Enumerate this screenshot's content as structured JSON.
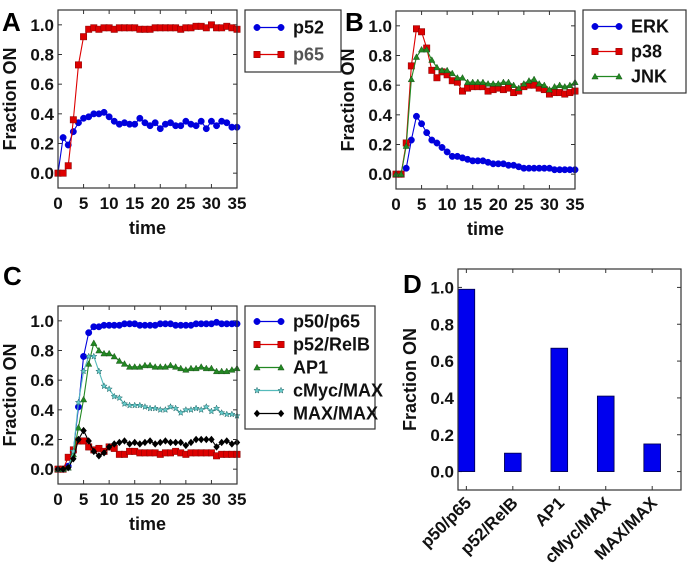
{
  "chart_data": [
    {
      "panel": "A",
      "type": "line",
      "title": "",
      "xlabel": "time",
      "ylabel": "Fraction ON",
      "xlim": [
        0,
        35
      ],
      "ylim": [
        -0.1,
        1.1
      ],
      "xticks": [
        "0",
        "5",
        "10",
        "15",
        "20",
        "25",
        "30",
        "35"
      ],
      "yticks": [
        "0.0",
        "0.2",
        "0.4",
        "0.6",
        "0.8",
        "1.0"
      ],
      "legend_position": "outside-right",
      "x": [
        0,
        1,
        2,
        3,
        4,
        5,
        6,
        7,
        8,
        9,
        10,
        11,
        12,
        13,
        14,
        15,
        16,
        17,
        18,
        19,
        20,
        21,
        22,
        23,
        24,
        25,
        26,
        27,
        28,
        29,
        30,
        31,
        32,
        33,
        34,
        35
      ],
      "series": [
        {
          "name": "p52",
          "color": "#0000dd",
          "marker": "circle",
          "label_color": "#111111",
          "values": [
            0.0,
            0.24,
            0.19,
            0.28,
            0.34,
            0.37,
            0.38,
            0.4,
            0.4,
            0.41,
            0.38,
            0.35,
            0.33,
            0.34,
            0.33,
            0.33,
            0.37,
            0.34,
            0.32,
            0.34,
            0.3,
            0.33,
            0.34,
            0.32,
            0.32,
            0.35,
            0.33,
            0.32,
            0.35,
            0.3,
            0.35,
            0.32,
            0.35,
            0.34,
            0.31,
            0.31
          ]
        },
        {
          "name": "p65",
          "color": "#dd0000",
          "marker": "square",
          "label_color": "#555555",
          "values": [
            0.0,
            0.0,
            0.05,
            0.36,
            0.73,
            0.92,
            0.97,
            0.98,
            0.97,
            0.98,
            0.98,
            0.97,
            0.98,
            0.98,
            0.98,
            0.98,
            0.97,
            0.97,
            0.97,
            0.98,
            0.98,
            0.98,
            0.98,
            0.98,
            0.97,
            0.98,
            0.98,
            0.99,
            0.99,
            0.98,
            1.0,
            0.98,
            0.98,
            0.99,
            0.98,
            0.97
          ]
        }
      ]
    },
    {
      "panel": "B",
      "type": "line",
      "title": "",
      "xlabel": "time",
      "ylabel": "Fraction ON",
      "xlim": [
        0,
        35
      ],
      "ylim": [
        -0.1,
        1.1
      ],
      "xticks": [
        "0",
        "5",
        "10",
        "15",
        "20",
        "25",
        "30",
        "35"
      ],
      "yticks": [
        "0.0",
        "0.2",
        "0.4",
        "0.6",
        "0.8",
        "1.0"
      ],
      "legend_position": "outside-right",
      "x": [
        0,
        1,
        2,
        3,
        4,
        5,
        6,
        7,
        8,
        9,
        10,
        11,
        12,
        13,
        14,
        15,
        16,
        17,
        18,
        19,
        20,
        21,
        22,
        23,
        24,
        25,
        26,
        27,
        28,
        29,
        30,
        31,
        32,
        33,
        34,
        35
      ],
      "series": [
        {
          "name": "ERK",
          "color": "#0000dd",
          "marker": "circle",
          "label_color": "#111111",
          "values": [
            0.0,
            0.0,
            0.04,
            0.23,
            0.39,
            0.34,
            0.28,
            0.23,
            0.21,
            0.18,
            0.15,
            0.12,
            0.12,
            0.11,
            0.1,
            0.09,
            0.09,
            0.09,
            0.08,
            0.07,
            0.07,
            0.07,
            0.06,
            0.06,
            0.05,
            0.04,
            0.04,
            0.04,
            0.04,
            0.04,
            0.04,
            0.03,
            0.03,
            0.03,
            0.03,
            0.03
          ]
        },
        {
          "name": "p38",
          "color": "#dd0000",
          "marker": "square",
          "label_color": "#111111",
          "values": [
            0.0,
            0.0,
            0.21,
            0.73,
            0.98,
            0.96,
            0.85,
            0.7,
            0.65,
            0.69,
            0.67,
            0.63,
            0.62,
            0.56,
            0.58,
            0.59,
            0.59,
            0.59,
            0.56,
            0.57,
            0.58,
            0.57,
            0.58,
            0.55,
            0.56,
            0.59,
            0.6,
            0.6,
            0.58,
            0.57,
            0.54,
            0.55,
            0.55,
            0.54,
            0.55,
            0.56
          ]
        },
        {
          "name": "JNK",
          "color": "#228822",
          "marker": "triangle",
          "label_color": "#111111",
          "values": [
            0.0,
            0.0,
            0.19,
            0.64,
            0.79,
            0.84,
            0.84,
            0.77,
            0.72,
            0.7,
            0.7,
            0.68,
            0.65,
            0.65,
            0.62,
            0.62,
            0.62,
            0.62,
            0.61,
            0.61,
            0.61,
            0.62,
            0.62,
            0.6,
            0.58,
            0.61,
            0.63,
            0.64,
            0.61,
            0.6,
            0.57,
            0.59,
            0.6,
            0.59,
            0.6,
            0.62
          ]
        }
      ]
    },
    {
      "panel": "C",
      "type": "line",
      "title": "",
      "xlabel": "time",
      "ylabel": "Fraction ON",
      "xlim": [
        0,
        35
      ],
      "ylim": [
        -0.1,
        1.1
      ],
      "xticks": [
        "0",
        "5",
        "10",
        "15",
        "20",
        "25",
        "30",
        "35"
      ],
      "yticks": [
        "0.0",
        "0.2",
        "0.4",
        "0.6",
        "0.8",
        "1.0"
      ],
      "legend_position": "outside-right",
      "x": [
        0,
        1,
        2,
        3,
        4,
        5,
        6,
        7,
        8,
        9,
        10,
        11,
        12,
        13,
        14,
        15,
        16,
        17,
        18,
        19,
        20,
        21,
        22,
        23,
        24,
        25,
        26,
        27,
        28,
        29,
        30,
        31,
        32,
        33,
        34,
        35
      ],
      "series": [
        {
          "name": "p50/p65",
          "color": "#0000dd",
          "marker": "circle",
          "label_color": "#111111",
          "values": [
            0.0,
            0.0,
            0.02,
            0.12,
            0.42,
            0.76,
            0.92,
            0.96,
            0.96,
            0.97,
            0.97,
            0.97,
            0.97,
            0.98,
            0.98,
            0.98,
            0.97,
            0.97,
            0.97,
            0.97,
            0.98,
            0.98,
            0.98,
            0.97,
            0.97,
            0.97,
            0.97,
            0.98,
            0.98,
            0.98,
            0.98,
            0.99,
            0.98,
            0.98,
            0.98,
            0.98
          ]
        },
        {
          "name": "p52/RelB",
          "color": "#dd0000",
          "marker": "square",
          "label_color": "#111111",
          "values": [
            0.0,
            0.0,
            0.08,
            0.13,
            0.19,
            0.19,
            0.15,
            0.13,
            0.14,
            0.12,
            0.15,
            0.14,
            0.1,
            0.1,
            0.12,
            0.12,
            0.11,
            0.11,
            0.11,
            0.11,
            0.1,
            0.11,
            0.11,
            0.12,
            0.11,
            0.1,
            0.11,
            0.11,
            0.11,
            0.11,
            0.11,
            0.09,
            0.1,
            0.1,
            0.1,
            0.1
          ]
        },
        {
          "name": "AP1",
          "color": "#228822",
          "marker": "triangle",
          "label_color": "#111111",
          "values": [
            0.0,
            0.0,
            0.01,
            0.1,
            0.28,
            0.47,
            0.71,
            0.85,
            0.8,
            0.78,
            0.78,
            0.76,
            0.73,
            0.71,
            0.69,
            0.69,
            0.69,
            0.7,
            0.7,
            0.69,
            0.69,
            0.69,
            0.7,
            0.69,
            0.68,
            0.67,
            0.68,
            0.68,
            0.69,
            0.68,
            0.68,
            0.66,
            0.66,
            0.66,
            0.67,
            0.68
          ]
        },
        {
          "name": "cMyc/MAX",
          "color": "#339999",
          "marker": "star",
          "label_color": "#111111",
          "values": [
            0.0,
            0.0,
            0.01,
            0.12,
            0.45,
            0.66,
            0.76,
            0.76,
            0.66,
            0.56,
            0.54,
            0.49,
            0.48,
            0.44,
            0.43,
            0.43,
            0.43,
            0.42,
            0.41,
            0.41,
            0.4,
            0.4,
            0.42,
            0.41,
            0.38,
            0.4,
            0.4,
            0.41,
            0.4,
            0.42,
            0.39,
            0.41,
            0.38,
            0.37,
            0.37,
            0.36
          ]
        },
        {
          "name": "MAX/MAX",
          "color": "#000000",
          "marker": "diamond",
          "label_color": "#111111",
          "values": [
            0.0,
            0.0,
            0.01,
            0.07,
            0.2,
            0.26,
            0.19,
            0.12,
            0.09,
            0.11,
            0.15,
            0.17,
            0.18,
            0.19,
            0.17,
            0.18,
            0.17,
            0.18,
            0.19,
            0.17,
            0.18,
            0.19,
            0.18,
            0.18,
            0.18,
            0.16,
            0.18,
            0.2,
            0.2,
            0.2,
            0.2,
            0.15,
            0.18,
            0.19,
            0.17,
            0.18
          ]
        }
      ]
    },
    {
      "panel": "D",
      "type": "bar",
      "title": "",
      "xlabel": "",
      "ylabel": "Fraction ON",
      "ylim": [
        -0.1,
        1.1
      ],
      "yticks": [
        "0.0",
        "0.2",
        "0.4",
        "0.6",
        "0.8",
        "1.0"
      ],
      "categories": [
        "p50/p65",
        "p52/RelB",
        "AP1",
        "cMyc/MAX",
        "MAX/MAX"
      ],
      "values": [
        0.99,
        0.1,
        0.67,
        0.41,
        0.15
      ],
      "bar_color": "#0000ee"
    }
  ]
}
